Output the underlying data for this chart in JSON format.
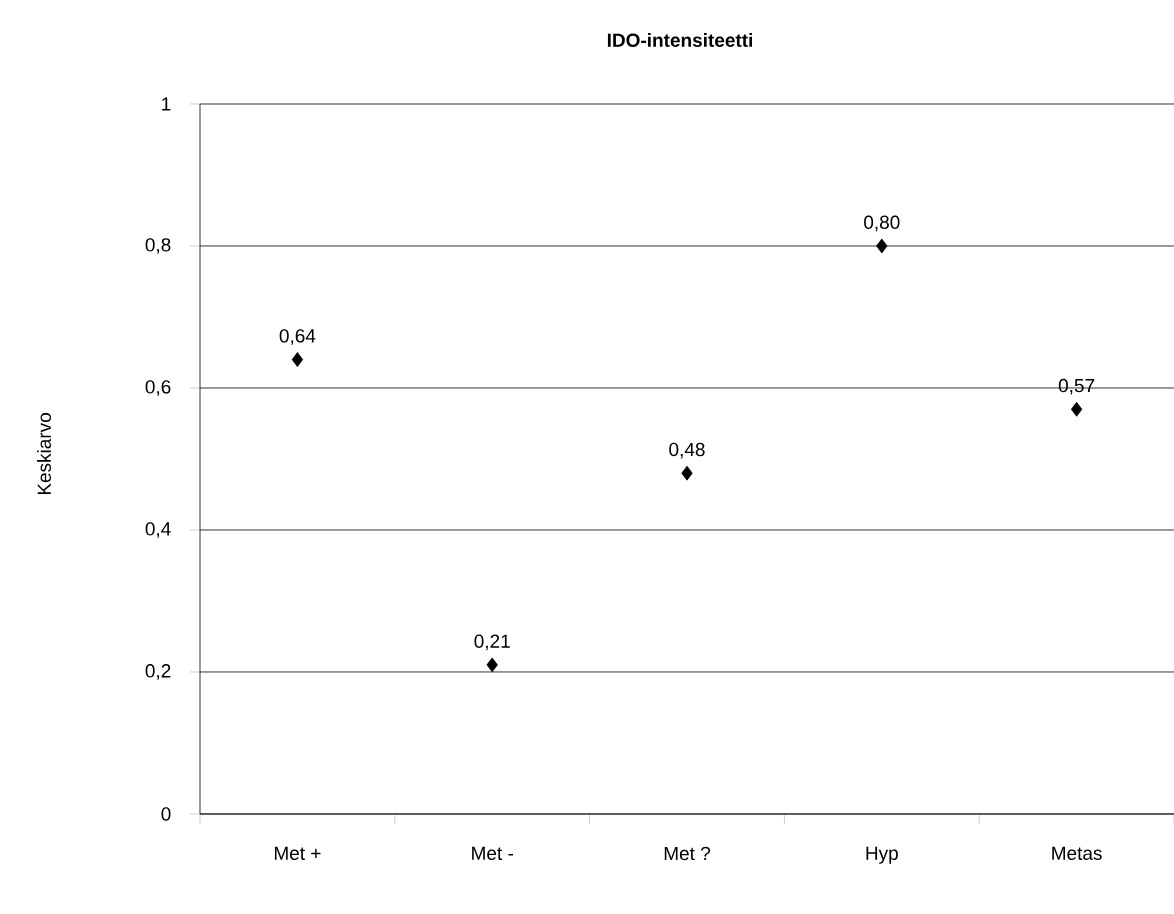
{
  "chart_data": {
    "type": "scatter",
    "title": "IDO-intensiteetti",
    "ylabel": "Keskiarvo",
    "categories": [
      "Met +",
      "Met -",
      "Met ?",
      "Hyp",
      "Metas"
    ],
    "values": [
      0.64,
      0.21,
      0.48,
      0.8,
      0.57
    ],
    "value_labels": [
      "0,64",
      "0,21",
      "0,48",
      "0,80",
      "0,57"
    ],
    "color": "#000000",
    "marker": "diamond",
    "ylim": [
      0,
      1
    ],
    "yticks": [
      0,
      {
        "value": 0.2,
        "label": "0,2"
      },
      {
        "value": 0.4,
        "label": "0,4"
      },
      {
        "value": 0.6,
        "label": "0,6"
      },
      {
        "value": 0.8,
        "label": "0,8"
      },
      1
    ],
    "grid": "y"
  }
}
